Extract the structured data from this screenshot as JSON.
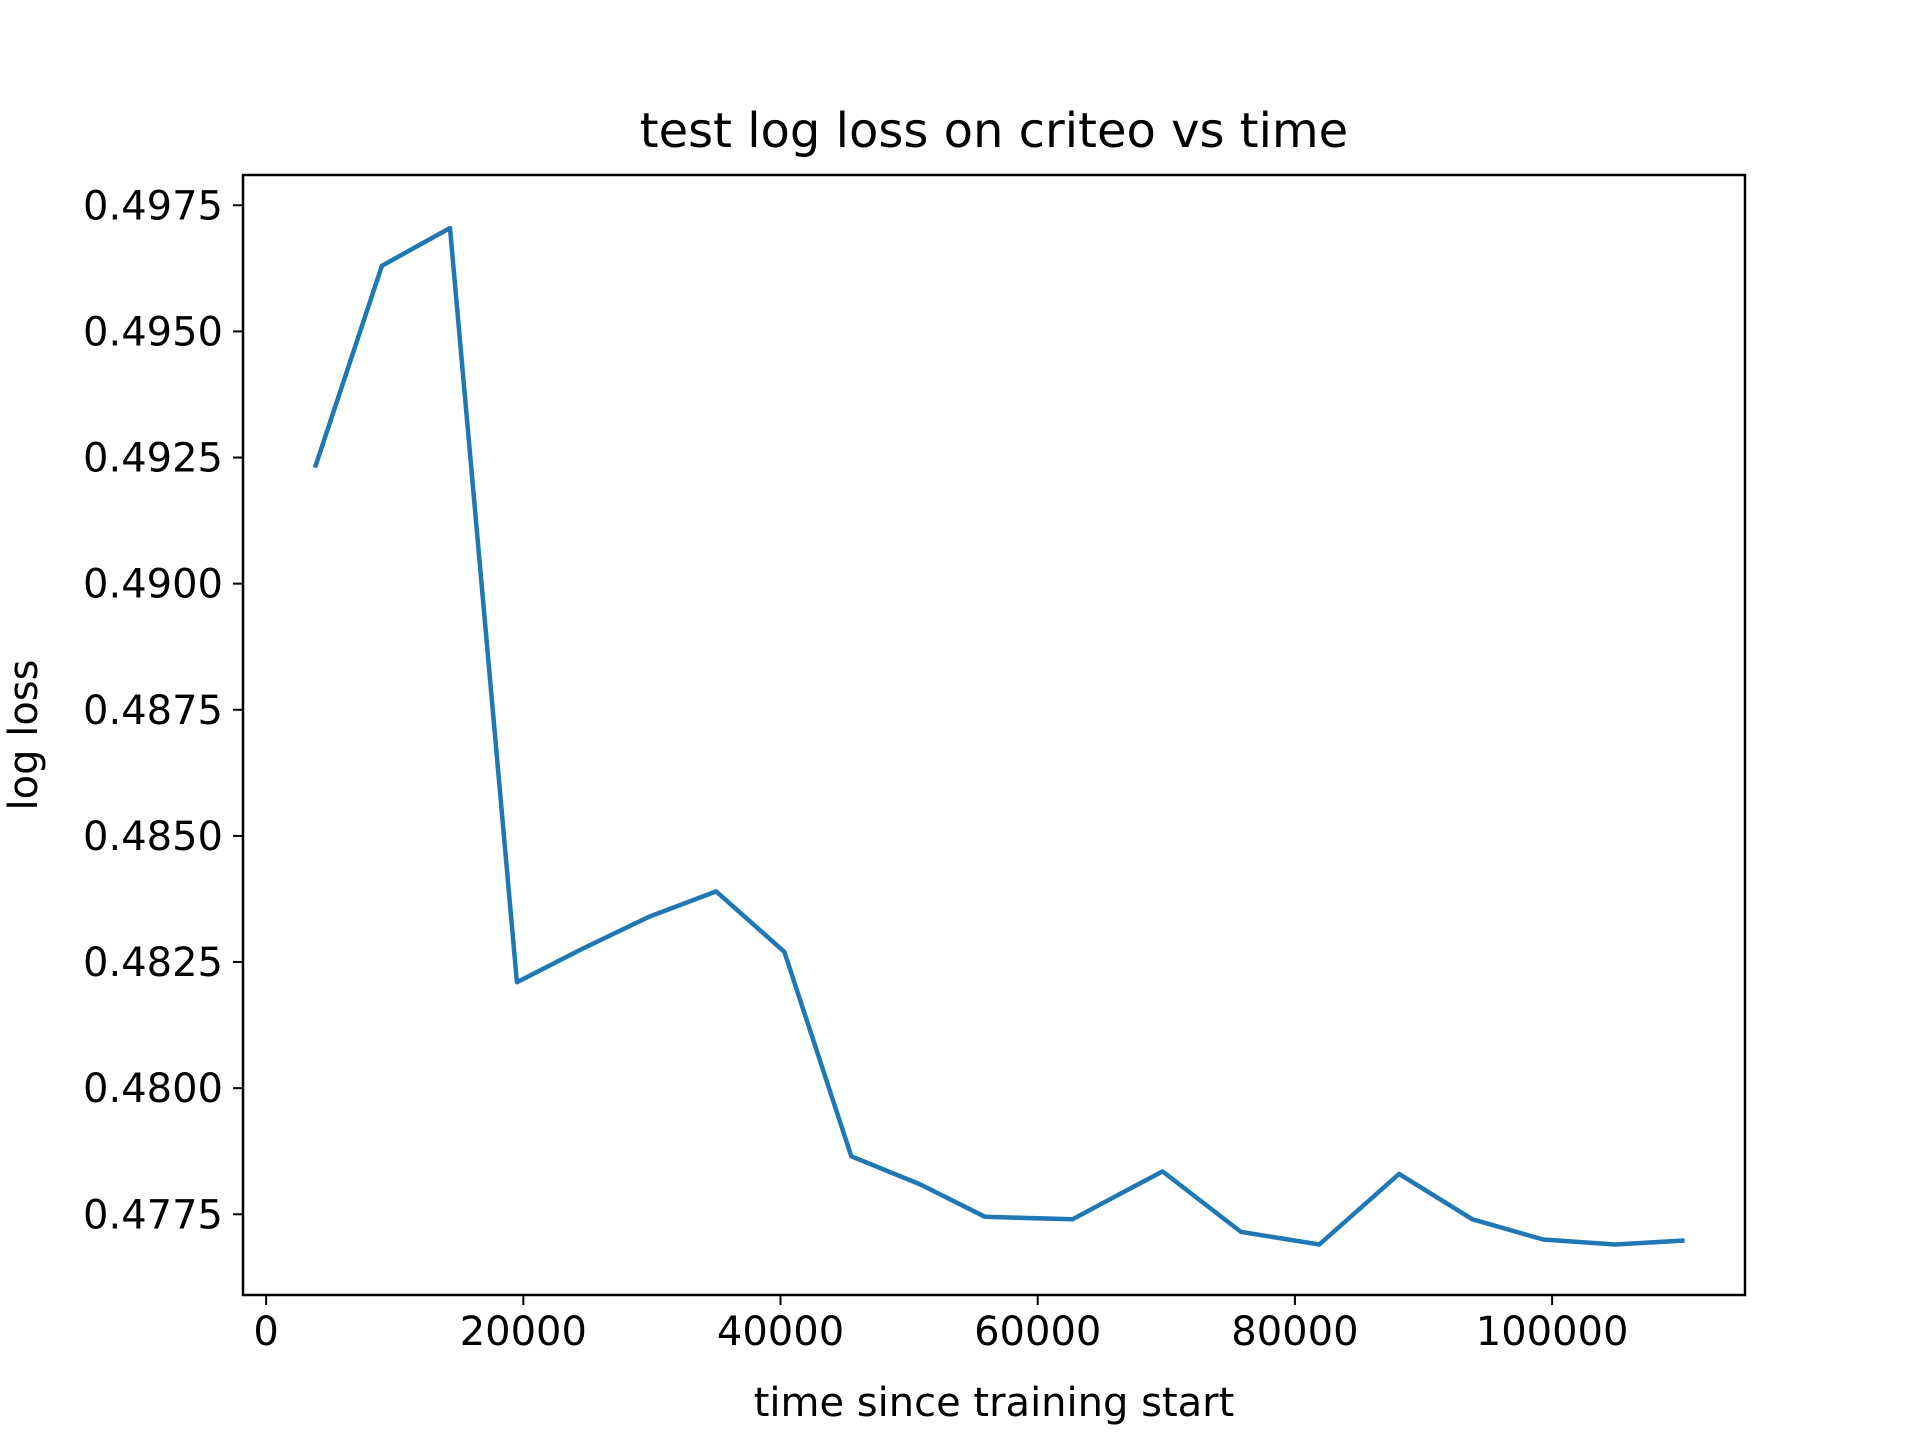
{
  "chart_data": {
    "type": "line",
    "title": "test log loss on criteo vs time",
    "xlabel": "time since training start",
    "ylabel": "log loss",
    "xlim": [
      -1800,
      115000
    ],
    "ylim": [
      0.4759,
      0.4981
    ],
    "xticks": [
      0,
      20000,
      40000,
      60000,
      80000,
      100000
    ],
    "xtick_labels": [
      "0",
      "20000",
      "40000",
      "60000",
      "80000",
      "100000"
    ],
    "yticks": [
      0.4775,
      0.48,
      0.4825,
      0.485,
      0.4875,
      0.49,
      0.4925,
      0.495,
      0.4975
    ],
    "ytick_labels": [
      "0.4775",
      "0.4800",
      "0.4825",
      "0.4850",
      "0.4875",
      "0.4900",
      "0.4925",
      "0.4950",
      "0.4975"
    ],
    "grid": false,
    "series": [
      {
        "color": "#1f77b4",
        "x": [
          3800,
          9000,
          14300,
          19500,
          24500,
          29800,
          35000,
          40300,
          45500,
          50800,
          55900,
          62700,
          69700,
          75800,
          81900,
          88100,
          93800,
          99300,
          104900,
          110300
        ],
        "y": [
          0.4923,
          0.4963,
          0.49705,
          0.4821,
          0.48275,
          0.4834,
          0.4839,
          0.4827,
          0.47865,
          0.4781,
          0.47745,
          0.4774,
          0.47835,
          0.47715,
          0.4769,
          0.4783,
          0.4774,
          0.477,
          0.4769,
          0.47698
        ]
      }
    ]
  }
}
